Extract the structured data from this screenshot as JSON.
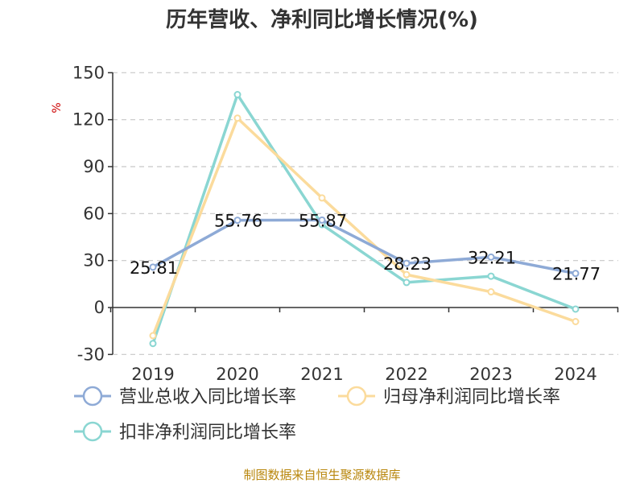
{
  "chart_data": {
    "type": "line",
    "title": "历年营收、净利同比增长情况(%)",
    "ylabel": "%",
    "xlabel": "",
    "categories": [
      "2019",
      "2020",
      "2021",
      "2022",
      "2023",
      "2024"
    ],
    "ylim": [
      -30,
      150
    ],
    "yticks": [
      -30,
      0,
      30,
      60,
      90,
      120,
      150
    ],
    "grid": true,
    "legend_position": "bottom",
    "series": [
      {
        "name": "营业总收入同比增长率",
        "color": "#8eaad6",
        "values": [
          25.81,
          55.76,
          55.87,
          28.23,
          32.21,
          21.77
        ],
        "labels": [
          "25.81",
          "55.76",
          "55.87",
          "28.23",
          "32.21",
          "21.77"
        ]
      },
      {
        "name": "归母净利润同比增长率",
        "color": "#fbdb9c",
        "values": [
          -18,
          121,
          70,
          21,
          10,
          -9
        ]
      },
      {
        "name": "扣非净利润同比增长率",
        "color": "#8ad6d2",
        "values": [
          -23,
          136,
          53,
          16,
          20,
          -1
        ]
      }
    ]
  },
  "footer": {
    "source": "制图数据来自恒生聚源数据库"
  }
}
